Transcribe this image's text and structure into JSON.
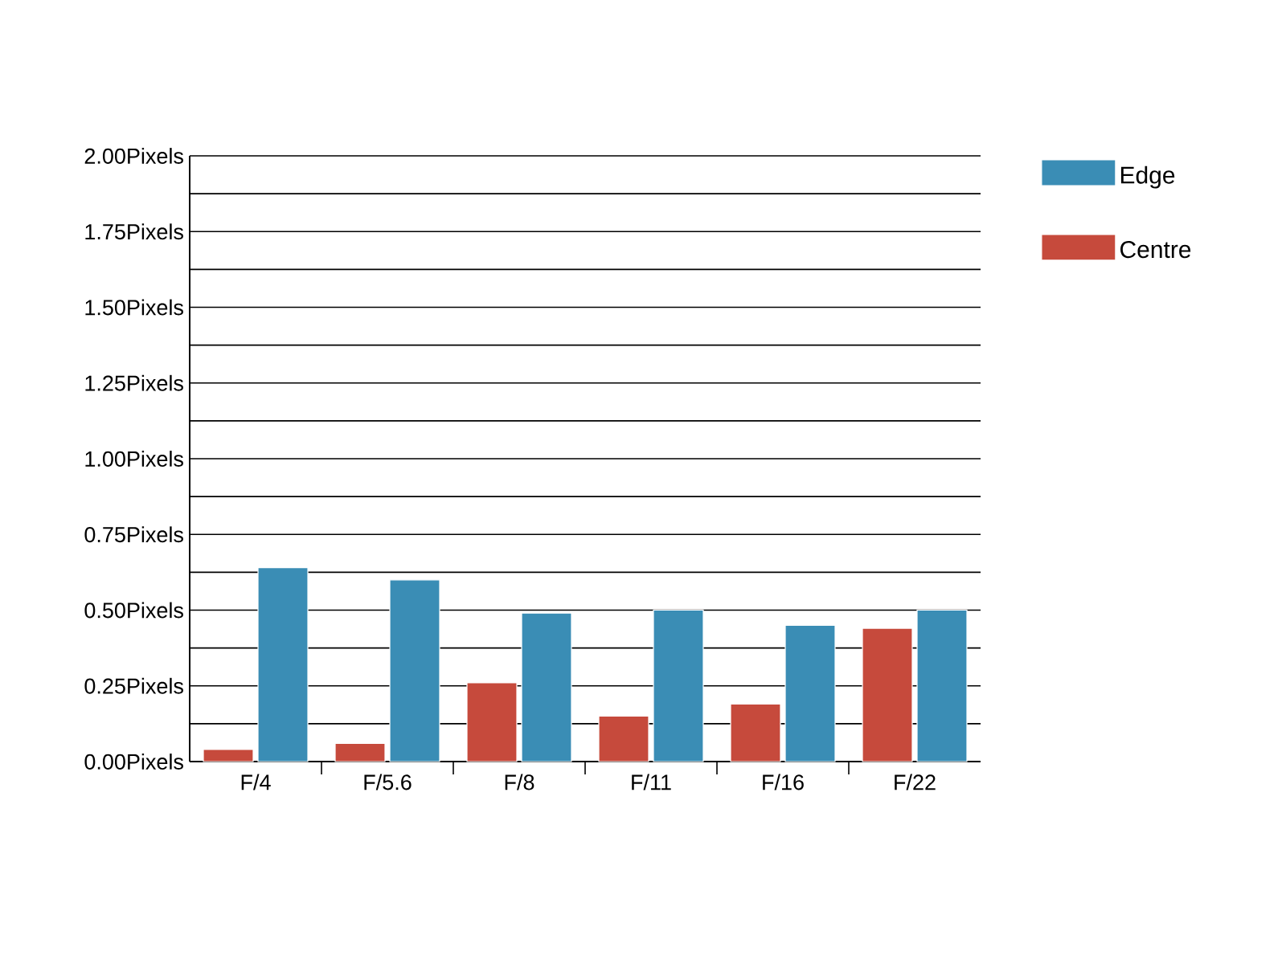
{
  "chart_data": {
    "type": "bar",
    "categories": [
      "F/4",
      "F/5.6",
      "F/8",
      "F/11",
      "F/16",
      "F/22"
    ],
    "series": [
      {
        "name": "Centre",
        "color": "#c64a3c",
        "values": [
          0.04,
          0.06,
          0.26,
          0.15,
          0.19,
          0.44
        ]
      },
      {
        "name": "Edge",
        "color": "#3a8db5",
        "values": [
          0.64,
          0.6,
          0.49,
          0.5,
          0.45,
          0.5
        ]
      }
    ],
    "ylim": [
      0,
      2
    ],
    "yticks": [
      {
        "value": 0,
        "label": "0.00Pixels"
      },
      {
        "value": 0.125,
        "label": null
      },
      {
        "value": 0.25,
        "label": "0.25Pixels"
      },
      {
        "value": 0.375,
        "label": null
      },
      {
        "value": 0.5,
        "label": "0.50Pixels"
      },
      {
        "value": 0.625,
        "label": null
      },
      {
        "value": 0.75,
        "label": "0.75Pixels"
      },
      {
        "value": 0.875,
        "label": null
      },
      {
        "value": 1,
        "label": "1.00Pixels"
      },
      {
        "value": 1.125,
        "label": null
      },
      {
        "value": 1.25,
        "label": "1.25Pixels"
      },
      {
        "value": 1.375,
        "label": null
      },
      {
        "value": 1.5,
        "label": "1.50Pixels"
      },
      {
        "value": 1.625,
        "label": null
      },
      {
        "value": 1.75,
        "label": "1.75Pixels"
      },
      {
        "value": 1.875,
        "label": null
      },
      {
        "value": 2,
        "label": "2.00Pixels"
      }
    ],
    "grid": "y",
    "legend": "top right"
  }
}
